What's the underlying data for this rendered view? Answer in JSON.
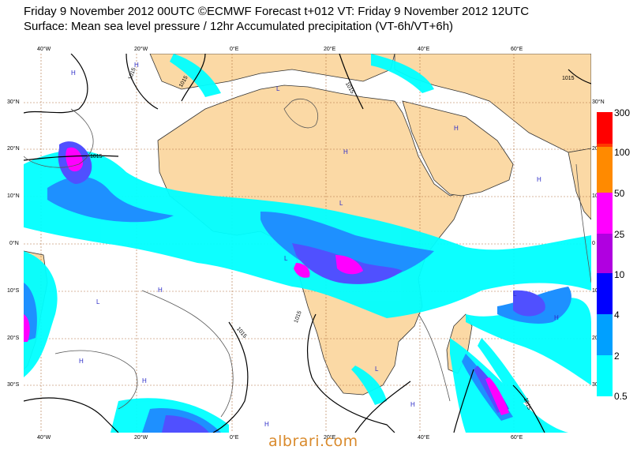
{
  "title_line1": "Friday 9 November 2012 00UTC ©ECMWF Forecast t+012 VT: Friday 9 November 2012 12UTC",
  "title_line2": "Surface: Mean sea level pressure / 12hr Accumulated precipitation (VT-6h/VT+6h)",
  "top_lon_ticks": [
    "40°W",
    "20°W",
    "0°E",
    "20°E",
    "40°E",
    "60°E"
  ],
  "bottom_lon_ticks": [
    "40°W",
    "20°W",
    "0°E",
    "20°E",
    "40°E",
    "60°E"
  ],
  "left_lat_ticks": [
    "30°N",
    "20°N",
    "10°N",
    "0°N",
    "10°S",
    "20°S",
    "30°S"
  ],
  "right_lat_ticks": [
    "30°N",
    "20",
    "10",
    "0",
    "10",
    "20",
    "30"
  ],
  "isobar_labels": [
    "1015",
    "1015",
    "1015",
    "1015",
    "1015",
    "1015",
    "1015",
    "1015"
  ],
  "pressure_centers": [
    "H",
    "H",
    "L",
    "H",
    "H",
    "L",
    "H",
    "L",
    "H",
    "L",
    "H",
    "L",
    "H",
    "H",
    "H",
    "L",
    "H"
  ],
  "legend": {
    "levels": [
      {
        "label": "300",
        "color": "#ff0000"
      },
      {
        "label": "100",
        "color": "#ff3a00"
      },
      {
        "label": "50",
        "color": "#ff8a00"
      },
      {
        "label": "25",
        "color": "#ff00ff"
      },
      {
        "label": "10",
        "color": "#b000e0"
      },
      {
        "label": "4",
        "color": "#0000ff"
      },
      {
        "label": "2",
        "color": "#00a0ff"
      },
      {
        "label": "0.5",
        "color": "#00ffff"
      }
    ]
  },
  "colors": {
    "land": "#fbd9a5",
    "ocean": "#ffffff",
    "grid": "#b07040",
    "precip_light": "#00ffff",
    "precip_mid": "#1e90ff",
    "precip_heavy": "#5050ff",
    "precip_very_heavy": "#ff00ff"
  },
  "watermark": "albrari.com"
}
